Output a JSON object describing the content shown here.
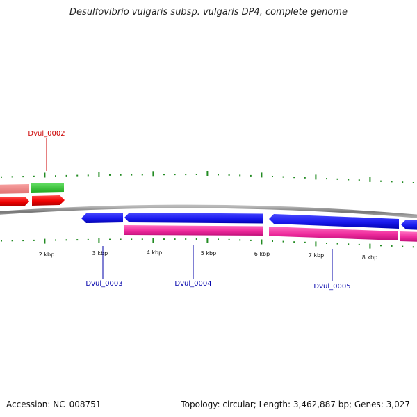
{
  "title": "Desulfovibrio vulgaris subsp. vulgaris DP4, complete genome",
  "footer": {
    "accession": "Accession: NC_008751",
    "summary": "Topology: circular; Length: 3,462,887 bp; Genes: 3,027"
  },
  "scale": {
    "unit": "kbp",
    "tick_labels": [
      "2 kbp",
      "3 kbp",
      "4 kbp",
      "5 kbp",
      "6 kbp",
      "7 kbp",
      "8 kbp"
    ]
  },
  "gene_labels": {
    "Dvul_0002": "Dvul_0002",
    "Dvul_0003": "Dvul_0003",
    "Dvul_0004": "Dvul_0004",
    "Dvul_0005": "Dvul_0005"
  },
  "colors": {
    "forward_cds": "#ee0000",
    "forward_cds_light": "#f08080",
    "forward_gene": "#33cc33",
    "reverse_cds": "#1a1aee",
    "reverse_gene": "#ee2a9c",
    "backbone": "#888888",
    "tick": "#228b22",
    "label_red": "#cc0000",
    "label_blue": "#0000aa"
  }
}
